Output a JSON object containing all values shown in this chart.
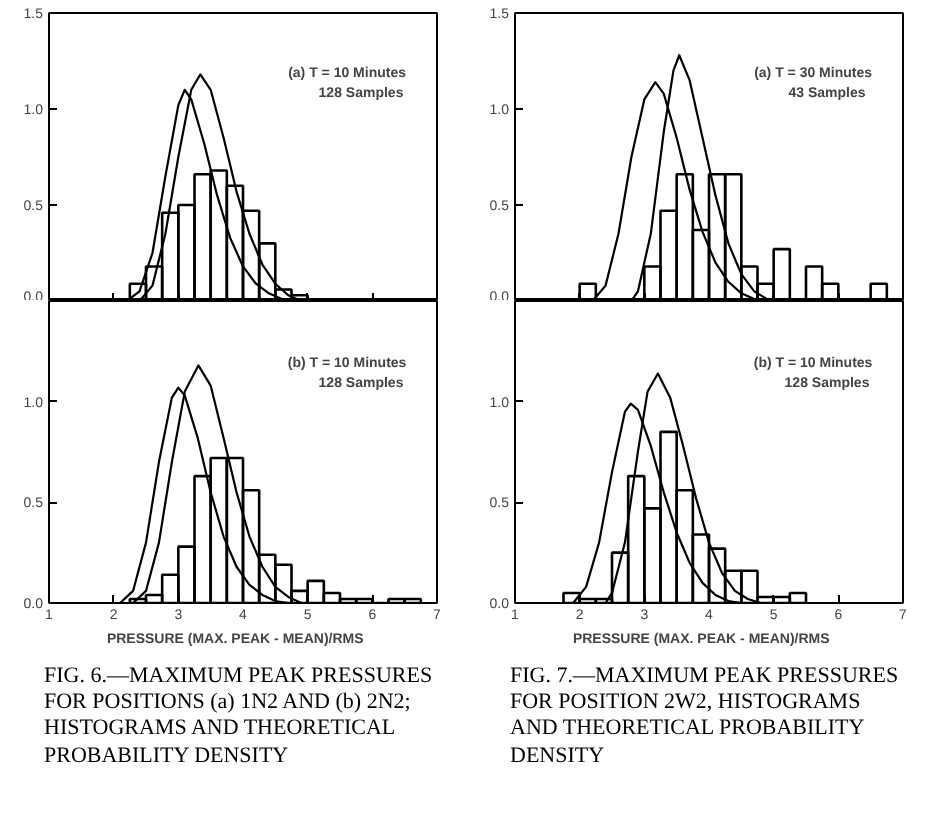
{
  "chart_data": [
    {
      "type": "histogram",
      "xlim": [
        1,
        7
      ],
      "ylim": [
        0,
        1.5
      ],
      "xticks": [
        1,
        2,
        3,
        4,
        5,
        6,
        7
      ],
      "yticks": [
        {
          "value": 0,
          "label": "0.0"
        },
        {
          "value": 0.5,
          "label": "0.5"
        },
        {
          "value": 1,
          "label": "1.0"
        },
        {
          "value": 1.5,
          "label": "1.5"
        }
      ],
      "tick_labels": "y",
      "annotations": [
        "(a)  T = 10 Minutes",
        "128 Samples"
      ],
      "color": "#000000",
      "bins": [
        2.25,
        2.5,
        2.75,
        3.0,
        3.25,
        3.5,
        3.75,
        4.0,
        4.25,
        4.5,
        4.75,
        5.0
      ],
      "values": [
        0.09,
        0.18,
        0.46,
        0.5,
        0.66,
        0.68,
        0.6,
        0.47,
        0.3,
        0.06,
        0.03
      ],
      "series": [
        {
          "type": "line",
          "color": "#000000",
          "x": [
            2.2,
            2.4,
            2.6,
            2.8,
            3.0,
            3.1,
            3.2,
            3.4,
            3.6,
            3.8,
            4.0,
            4.2,
            4.4,
            4.6,
            4.8
          ],
          "values": [
            0,
            0.05,
            0.25,
            0.65,
            1.02,
            1.1,
            1.05,
            0.82,
            0.55,
            0.33,
            0.18,
            0.09,
            0.04,
            0.01,
            0
          ]
        },
        {
          "type": "line",
          "color": "#000000",
          "x": [
            2.4,
            2.6,
            2.8,
            3.0,
            3.2,
            3.34,
            3.5,
            3.7,
            3.9,
            4.1,
            4.3,
            4.5,
            4.7,
            4.9
          ],
          "values": [
            0,
            0.08,
            0.35,
            0.75,
            1.1,
            1.18,
            1.1,
            0.85,
            0.57,
            0.35,
            0.19,
            0.09,
            0.03,
            0
          ]
        }
      ]
    },
    {
      "type": "histogram",
      "xlim": [
        1,
        7
      ],
      "ylim": [
        0,
        1.5
      ],
      "xticks": [
        1,
        2,
        3,
        4,
        5,
        6,
        7
      ],
      "yticks": [
        {
          "value": 0,
          "label": "0.0"
        },
        {
          "value": 0.5,
          "label": "0.5"
        },
        {
          "value": 1,
          "label": "1.0"
        },
        {
          "value": 1.5,
          "label": null
        }
      ],
      "xlabel": "PRESSURE     (MAX. PEAK - MEAN)/RMS",
      "annotations": [
        "(b)  T = 10 Minutes",
        "128 Samples",
        "FIG. 6.—MAXIMUM PEAK PRESSURES FOR POSITIONS (a) 1N2 AND (b) 2N2; HISTOGRAMS AND THEORETICAL PROBABILITY DENSITY"
      ],
      "color": "#000000",
      "bins": [
        2.25,
        2.5,
        2.75,
        3.0,
        3.25,
        3.5,
        3.75,
        4.0,
        4.25,
        4.5,
        4.75,
        5.0,
        5.25,
        5.5,
        5.75,
        6.0,
        6.25,
        6.5,
        6.75
      ],
      "values": [
        0.02,
        0.04,
        0.14,
        0.28,
        0.63,
        0.72,
        0.72,
        0.56,
        0.24,
        0.19,
        0.06,
        0.11,
        0.05,
        0.02,
        0.02,
        0,
        0.02,
        0.02
      ],
      "series": [
        {
          "type": "line",
          "color": "#000000",
          "x": [
            2.1,
            2.3,
            2.5,
            2.7,
            2.9,
            3.0,
            3.1,
            3.3,
            3.5,
            3.7,
            3.9,
            4.1,
            4.3,
            4.5,
            4.7
          ],
          "values": [
            0,
            0.06,
            0.3,
            0.7,
            1.02,
            1.07,
            1.03,
            0.82,
            0.55,
            0.33,
            0.18,
            0.09,
            0.04,
            0.01,
            0
          ]
        },
        {
          "type": "line",
          "color": "#000000",
          "x": [
            2.3,
            2.5,
            2.7,
            2.9,
            3.1,
            3.31,
            3.5,
            3.7,
            3.9,
            4.1,
            4.3,
            4.5,
            4.7,
            4.9
          ],
          "values": [
            0,
            0.06,
            0.3,
            0.7,
            1.05,
            1.18,
            1.08,
            0.82,
            0.55,
            0.33,
            0.18,
            0.08,
            0.03,
            0
          ]
        }
      ]
    },
    {
      "type": "histogram",
      "xlim": [
        1,
        7
      ],
      "ylim": [
        0,
        1.5
      ],
      "xticks": [
        1,
        2,
        3,
        4,
        5,
        6,
        7
      ],
      "yticks": [
        {
          "value": 0,
          "label": "0.0"
        },
        {
          "value": 0.5,
          "label": "0.5"
        },
        {
          "value": 1,
          "label": "1.0"
        },
        {
          "value": 1.5,
          "label": "1.5"
        }
      ],
      "tick_labels": "y",
      "annotations": [
        "(a)  T = 30 Minutes",
        "43 Samples"
      ],
      "color": "#000000",
      "bins": [
        2.0,
        2.25,
        2.5,
        2.75,
        3.0,
        3.25,
        3.5,
        3.75,
        4.0,
        4.25,
        4.5,
        4.75,
        5.0,
        5.25,
        5.5,
        5.75,
        6.0,
        6.25,
        6.5,
        6.75
      ],
      "values": [
        0.09,
        0,
        0,
        0,
        0.18,
        0.47,
        0.66,
        0.37,
        0.66,
        0.66,
        0.18,
        0.09,
        0.27,
        0,
        0.18,
        0.09,
        0,
        0,
        0.09
      ],
      "series": [
        {
          "type": "line",
          "color": "#000000",
          "x": [
            2.2,
            2.4,
            2.6,
            2.8,
            3.0,
            3.17,
            3.3,
            3.5,
            3.7,
            3.9,
            4.1,
            4.3,
            4.5,
            4.7,
            4.9
          ],
          "values": [
            0,
            0.08,
            0.35,
            0.75,
            1.05,
            1.14,
            1.08,
            0.85,
            0.58,
            0.36,
            0.2,
            0.1,
            0.04,
            0.01,
            0
          ]
        },
        {
          "type": "line",
          "color": "#000000",
          "x": [
            2.8,
            2.9,
            3.1,
            3.3,
            3.45,
            3.54,
            3.7,
            3.9,
            4.1,
            4.3,
            4.5,
            4.7,
            4.9,
            5.0
          ],
          "values": [
            0,
            0.05,
            0.35,
            0.88,
            1.2,
            1.28,
            1.15,
            0.85,
            0.55,
            0.3,
            0.14,
            0.05,
            0.01,
            0
          ]
        }
      ]
    },
    {
      "type": "histogram",
      "xlim": [
        1,
        7
      ],
      "ylim": [
        0,
        1.5
      ],
      "xticks": [
        1,
        2,
        3,
        4,
        5,
        6,
        7
      ],
      "yticks": [
        {
          "value": 0,
          "label": "0.0"
        },
        {
          "value": 0.5,
          "label": "0.5"
        },
        {
          "value": 1,
          "label": "1.0"
        },
        {
          "value": 1.5,
          "label": null
        }
      ],
      "xlabel": "PRESSURE     (MAX. PEAK - MEAN)/RMS",
      "annotations": [
        "(b)  T = 10 Minutes",
        "128 Samples",
        "FIG. 7.—MAXIMUM PEAK PRESSURES FOR POSITION 2W2, HISTOGRAMS AND THEORETICAL PROBABILITY DENSITY"
      ],
      "color": "#000000",
      "bins": [
        1.75,
        2.0,
        2.25,
        2.5,
        2.75,
        3.0,
        3.25,
        3.5,
        3.75,
        4.0,
        4.25,
        4.5,
        4.75,
        5.0,
        5.25,
        5.5
      ],
      "values": [
        0.05,
        0.02,
        0.02,
        0.25,
        0.63,
        0.47,
        0.85,
        0.56,
        0.34,
        0.27,
        0.16,
        0.16,
        0.03,
        0.03,
        0.05
      ],
      "series": [
        {
          "type": "line",
          "color": "#000000",
          "x": [
            1.9,
            2.1,
            2.3,
            2.5,
            2.7,
            2.79,
            2.9,
            3.1,
            3.3,
            3.5,
            3.7,
            3.9,
            4.1,
            4.3,
            4.5
          ],
          "values": [
            0,
            0.08,
            0.3,
            0.65,
            0.95,
            0.99,
            0.96,
            0.78,
            0.55,
            0.35,
            0.2,
            0.1,
            0.04,
            0.01,
            0
          ]
        },
        {
          "type": "line",
          "color": "#000000",
          "x": [
            2.4,
            2.5,
            2.7,
            2.9,
            3.05,
            3.21,
            3.4,
            3.6,
            3.8,
            4.0,
            4.2,
            4.4,
            4.6,
            4.8
          ],
          "values": [
            0,
            0.05,
            0.3,
            0.75,
            1.05,
            1.14,
            1.02,
            0.78,
            0.52,
            0.3,
            0.15,
            0.06,
            0.02,
            0
          ]
        }
      ]
    }
  ]
}
